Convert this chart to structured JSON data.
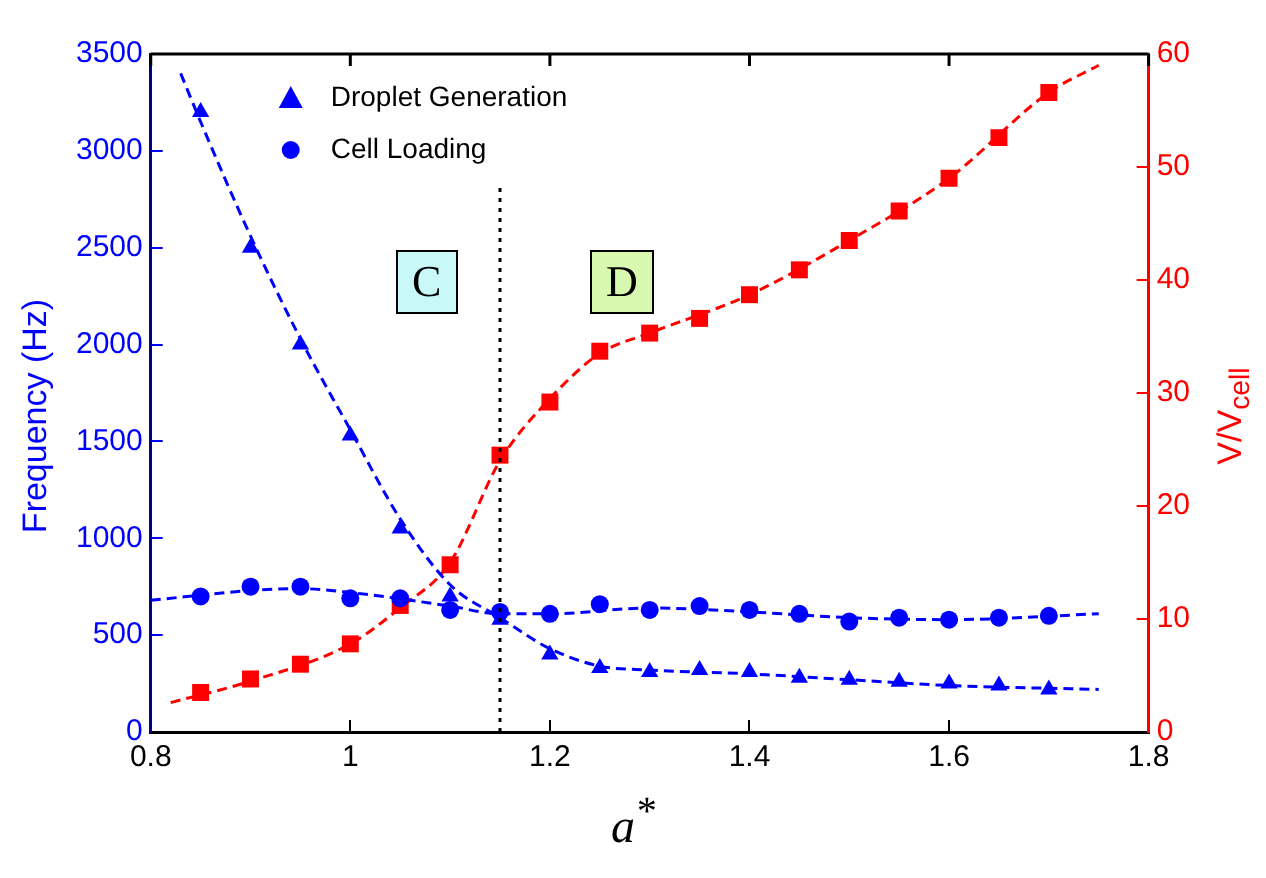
{
  "chart_data": {
    "type": "scatter",
    "xlabel": "a$^{*}$",
    "ylabel": "Frequency (Hz)",
    "y2label": "V/V$_{cell}$",
    "xlim": [
      0.8,
      1.8
    ],
    "xticks": [
      0.8,
      1,
      1.2,
      1.4,
      1.6,
      1.8
    ],
    "ylim": [
      0,
      3500
    ],
    "yticks": [
      0,
      500,
      1000,
      1500,
      2000,
      2500,
      3000,
      3500
    ],
    "y2lim": [
      0,
      60
    ],
    "y2ticks": [
      0,
      10,
      20,
      30,
      40,
      50,
      60
    ],
    "grid": false,
    "legend": "top left",
    "annotations": [
      "C",
      "D"
    ],
    "ref_lines": [
      {
        "axis": "x",
        "value": 1.15,
        "color": "#000000",
        "line_style": "dotted"
      }
    ],
    "x": [
      0.85,
      0.9,
      0.95,
      1.0,
      1.05,
      1.1,
      1.15,
      1.2,
      1.25,
      1.3,
      1.35,
      1.4,
      1.45,
      1.5,
      1.55,
      1.6,
      1.65,
      1.7
    ],
    "series": [
      {
        "name": "Droplet Generation",
        "type": "scatter",
        "marker": "triangle",
        "color": "#0000ff",
        "values": [
          3200,
          2500,
          2000,
          1530,
          1050,
          700,
          580,
          400,
          330,
          310,
          320,
          310,
          280,
          270,
          260,
          250,
          240,
          220
        ]
      },
      {
        "name": "Cell Loading",
        "type": "scatter",
        "marker": "circle",
        "color": "#0000ff",
        "values": [
          700,
          750,
          750,
          690,
          690,
          630,
          620,
          610,
          660,
          630,
          650,
          630,
          610,
          570,
          590,
          580,
          590,
          600
        ]
      },
      {
        "type": "scatter",
        "marker": "square",
        "color": "#ff0000",
        "axis": "y2",
        "values": [
          3.5,
          4.7,
          6.0,
          7.8,
          11.2,
          14.8,
          24.5,
          29.2,
          33.7,
          35.3,
          36.6,
          38.7,
          40.9,
          43.5,
          46.1,
          49.0,
          52.6,
          56.6
        ]
      },
      {
        "type": "line",
        "marker": "none",
        "line_style": "dashed",
        "color": "#0000ff",
        "x": [
          0.83,
          0.85,
          0.9,
          0.95,
          1.0,
          1.05,
          1.1,
          1.15,
          1.2,
          1.25,
          1.3,
          1.4,
          1.5,
          1.6,
          1.75
        ],
        "values": [
          3400,
          3150,
          2560,
          2030,
          1560,
          1100,
          760,
          590,
          430,
          340,
          320,
          300,
          270,
          240,
          220
        ]
      },
      {
        "type": "line",
        "marker": "none",
        "line_style": "dashed",
        "color": "#0000ff",
        "x": [
          0.8,
          0.9,
          0.95,
          1.0,
          1.1,
          1.15,
          1.2,
          1.3,
          1.4,
          1.5,
          1.6,
          1.75
        ],
        "values": [
          680,
          730,
          740,
          720,
          650,
          610,
          610,
          640,
          620,
          590,
          580,
          610
        ]
      },
      {
        "type": "line",
        "marker": "none",
        "line_style": "dashed",
        "color": "#ff0000",
        "axis": "y2",
        "x": [
          0.82,
          0.9,
          1.0,
          1.05,
          1.1,
          1.15,
          1.2,
          1.25,
          1.3,
          1.4,
          1.5,
          1.6,
          1.7,
          1.75
        ],
        "values": [
          2.6,
          4.5,
          7.8,
          11,
          15,
          24,
          29.5,
          33.5,
          35.3,
          38.7,
          43.5,
          49,
          56.6,
          59
        ]
      }
    ]
  }
}
